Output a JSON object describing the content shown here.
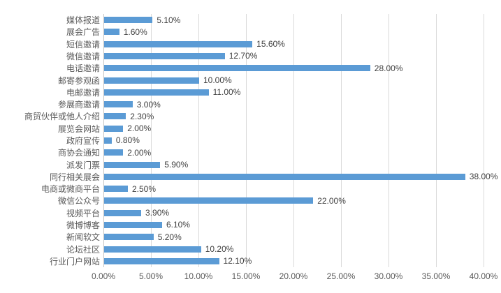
{
  "chart_data": {
    "type": "bar",
    "orientation": "horizontal",
    "categories": [
      "媒体报道",
      "展会广告",
      "短信邀请",
      "微信邀请",
      "电话邀请",
      "邮寄参观函",
      "电邮邀请",
      "参展商邀请",
      "商贸伙伴或他人介绍",
      "展览会网站",
      "政府宣传",
      "商协会通知",
      "派发门票",
      "同行相关展会",
      "电商或微商平台",
      "微信公众号",
      "视频平台",
      "微博博客",
      "新闻软文",
      "论坛社区",
      "行业门户网站"
    ],
    "values": [
      5.1,
      1.6,
      15.6,
      12.7,
      28.0,
      10.0,
      11.0,
      3.0,
      2.3,
      2.0,
      0.8,
      2.0,
      5.9,
      38.0,
      2.5,
      22.0,
      3.9,
      6.1,
      5.2,
      10.2,
      12.1
    ],
    "data_labels": [
      "5.10%",
      "1.60%",
      "15.60%",
      "12.70%",
      "28.00%",
      "10.00%",
      "11.00%",
      "3.00%",
      "2.30%",
      "2.00%",
      "0.80%",
      "2.00%",
      "5.90%",
      "38.00%",
      "2.50%",
      "22.00%",
      "3.90%",
      "6.10%",
      "5.20%",
      "10.20%",
      "12.10%"
    ],
    "x_ticks": [
      "0.00%",
      "5.00%",
      "10.00%",
      "15.00%",
      "20.00%",
      "25.00%",
      "30.00%",
      "35.00%",
      "40.00%"
    ],
    "xlim": [
      0,
      40
    ],
    "grid": true,
    "legend": "none",
    "bar_color": "#5b9bd5",
    "gridline_color": "#d9d9d9",
    "axis_line_color": "#c6c6c6",
    "axis_text_color": "#595959",
    "data_label_color": "#404040"
  }
}
